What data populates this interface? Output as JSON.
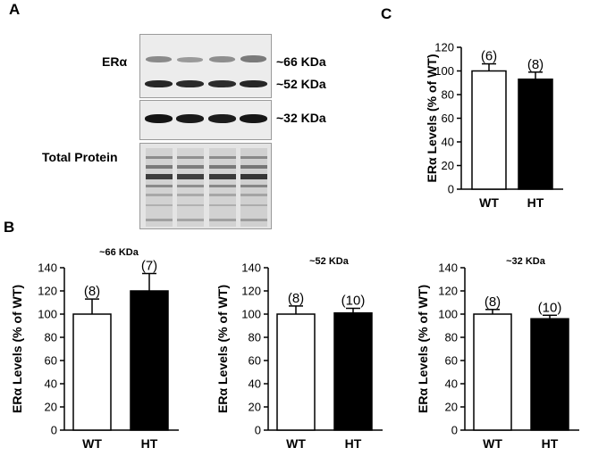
{
  "panels": {
    "a": "A",
    "b": "B",
    "c": "C"
  },
  "blot": {
    "protein_label": "ERα",
    "band_66": "~66 KDa",
    "band_52": "~52 KDa",
    "band_32": "~32 KDa",
    "total_protein": "Total Protein"
  },
  "chart_data": [
    {
      "id": "c",
      "type": "bar",
      "title": "",
      "ylabel": "ERα Levels (% of WT)",
      "categories": [
        "WT",
        "HT"
      ],
      "values": [
        100,
        93
      ],
      "errors": [
        6,
        6
      ],
      "n_labels": [
        "(6)",
        "(8)"
      ],
      "fills": [
        "#ffffff",
        "#000000"
      ],
      "ylim": [
        0,
        120
      ],
      "yticks": [
        0,
        20,
        40,
        60,
        80,
        100,
        120
      ]
    },
    {
      "id": "b1",
      "type": "bar",
      "title": "~66 KDa",
      "ylabel": "ERα Levels (% of WT)",
      "categories": [
        "WT",
        "HT"
      ],
      "values": [
        100,
        120
      ],
      "errors": [
        13,
        15
      ],
      "n_labels": [
        "(8)",
        "(7)"
      ],
      "fills": [
        "#ffffff",
        "#000000"
      ],
      "ylim": [
        0,
        140
      ],
      "yticks": [
        0,
        20,
        40,
        60,
        80,
        100,
        120,
        140
      ]
    },
    {
      "id": "b2",
      "type": "bar",
      "title": "~52 KDa",
      "ylabel": "ERα Levels (% of WT)",
      "categories": [
        "WT",
        "HT"
      ],
      "values": [
        100,
        101
      ],
      "errors": [
        7,
        4
      ],
      "n_labels": [
        "(8)",
        "(10)"
      ],
      "fills": [
        "#ffffff",
        "#000000"
      ],
      "ylim": [
        0,
        140
      ],
      "yticks": [
        0,
        20,
        40,
        60,
        80,
        100,
        120,
        140
      ]
    },
    {
      "id": "b3",
      "type": "bar",
      "title": "~32 KDa",
      "ylabel": "ERα Levels (% of WT)",
      "categories": [
        "WT",
        "HT"
      ],
      "values": [
        100,
        96
      ],
      "errors": [
        4,
        3
      ],
      "n_labels": [
        "(8)",
        "(10)"
      ],
      "fills": [
        "#ffffff",
        "#000000"
      ],
      "ylim": [
        0,
        140
      ],
      "yticks": [
        0,
        20,
        40,
        60,
        80,
        100,
        120,
        140
      ]
    }
  ]
}
